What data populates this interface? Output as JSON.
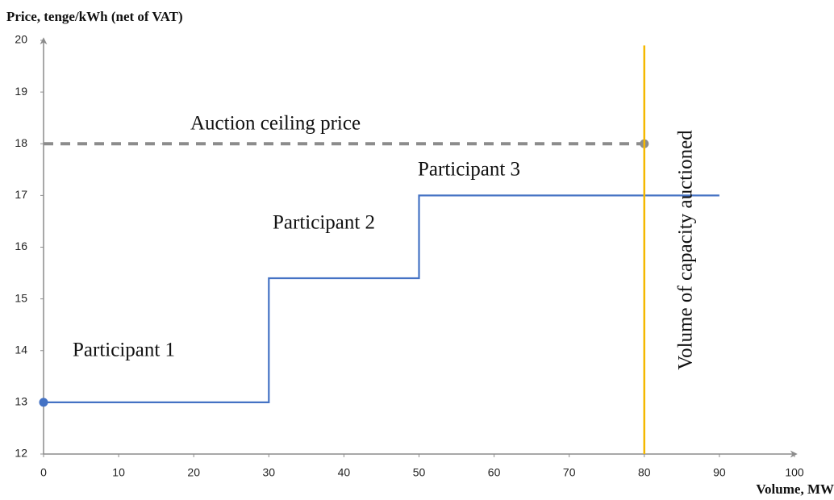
{
  "chart_data": {
    "type": "line",
    "y_label": "Price, tenge/kWh (net of VAT)",
    "x_label": "Volume, MW",
    "xlim": [
      0,
      100
    ],
    "xticks": [
      0,
      10,
      20,
      30,
      40,
      50,
      60,
      70,
      80,
      90,
      100
    ],
    "ylim": [
      12,
      20
    ],
    "yticks": [
      12,
      13,
      14,
      15,
      16,
      17,
      18,
      19,
      20
    ],
    "grid": false,
    "series": [
      {
        "color": "#4472c4",
        "x": [
          0,
          30,
          30,
          50,
          50,
          90
        ],
        "values": [
          13,
          13,
          15.4,
          15.4,
          17,
          17
        ]
      },
      {
        "color": "#8c8c8c",
        "x": [
          0,
          80
        ],
        "values": [
          18,
          18
        ]
      },
      {
        "color": "#f5b800",
        "x": [
          80,
          80
        ],
        "values": [
          12,
          19.9
        ]
      }
    ],
    "annotations": [
      "Auction ceiling price",
      "Participant 1",
      "Participant 2",
      "Participant 3",
      "Volume of capacity auctioned"
    ]
  }
}
